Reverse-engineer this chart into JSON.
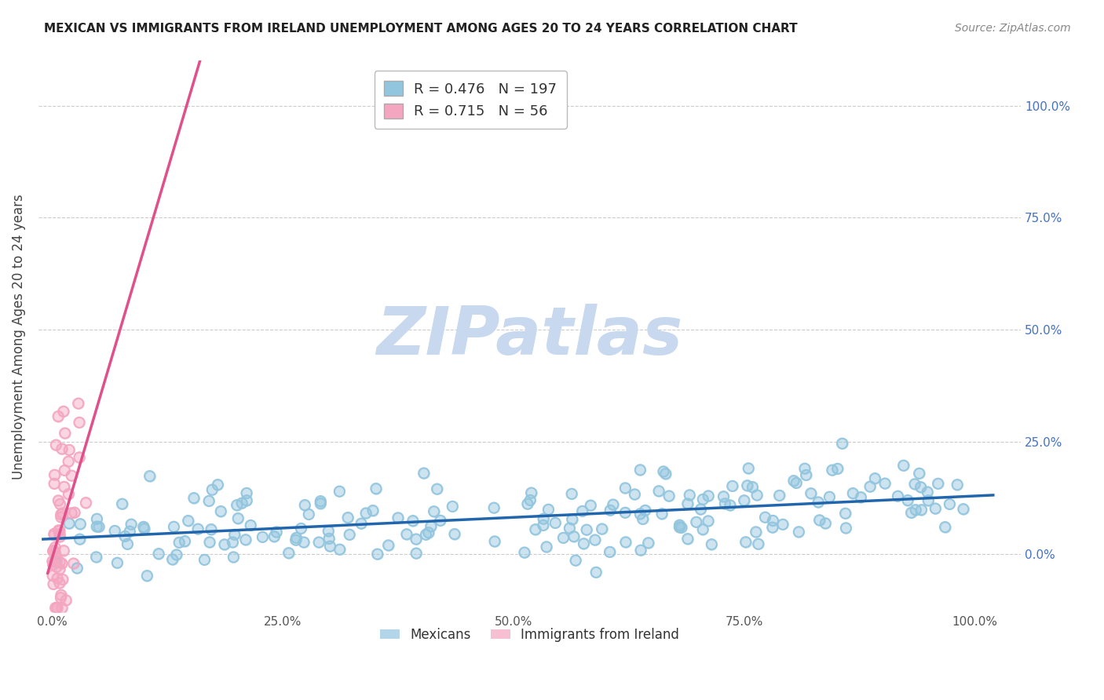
{
  "title": "MEXICAN VS IMMIGRANTS FROM IRELAND UNEMPLOYMENT AMONG AGES 20 TO 24 YEARS CORRELATION CHART",
  "source": "Source: ZipAtlas.com",
  "ylabel": "Unemployment Among Ages 20 to 24 years",
  "blue_R": 0.476,
  "blue_N": 197,
  "pink_R": 0.715,
  "pink_N": 56,
  "blue_color": "#92c5de",
  "pink_color": "#f4a6c0",
  "blue_line_color": "#2166ac",
  "pink_line_color": "#e0508a",
  "bg_color": "#ffffff",
  "grid_color": "#cccccc",
  "watermark_color": "#c8d8ee",
  "xlim": [
    -0.015,
    1.05
  ],
  "ylim": [
    -0.13,
    1.1
  ],
  "xticks": [
    0.0,
    0.25,
    0.5,
    0.75,
    1.0
  ],
  "yticks": [
    0.0,
    0.25,
    0.5,
    0.75,
    1.0
  ],
  "legend_labels": [
    "Mexicans",
    "Immigrants from Ireland"
  ],
  "right_tick_color": "#4472c4",
  "title_fontsize": 11,
  "axis_label_fontsize": 11,
  "tick_fontsize": 11
}
